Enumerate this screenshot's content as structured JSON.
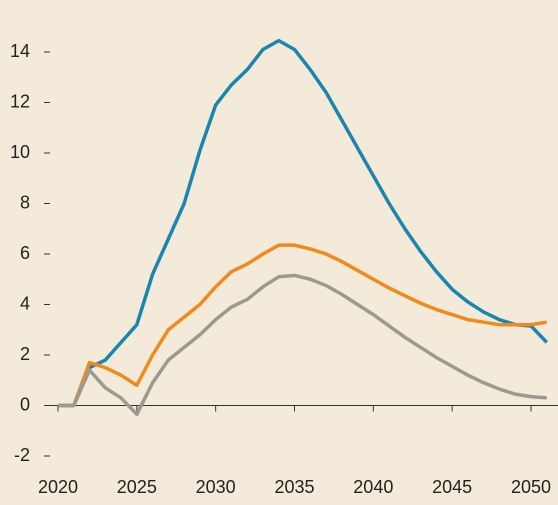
{
  "chart_data": {
    "type": "line",
    "x": [
      2020,
      2021,
      2022,
      2023,
      2024,
      2025,
      2026,
      2027,
      2028,
      2029,
      2030,
      2031,
      2032,
      2033,
      2034,
      2035,
      2036,
      2037,
      2038,
      2039,
      2040,
      2041,
      2042,
      2043,
      2044,
      2045,
      2046,
      2047,
      2048,
      2049,
      2050,
      2051
    ],
    "series": [
      {
        "color": "#1a86b0",
        "values": [
          0,
          0,
          1.5,
          1.8,
          2.5,
          3.2,
          5.2,
          6.6,
          8.0,
          10.1,
          11.9,
          12.7,
          13.3,
          14.1,
          14.45,
          14.1,
          13.3,
          12.4,
          11.3,
          10.2,
          9.1,
          8.0,
          7.0,
          6.1,
          5.3,
          4.6,
          4.1,
          3.7,
          3.4,
          3.2,
          3.15,
          2.5
        ]
      },
      {
        "color": "#f08a1c",
        "values": [
          0,
          0,
          1.7,
          1.5,
          1.2,
          0.8,
          2.0,
          3.0,
          3.5,
          4.0,
          4.7,
          5.3,
          5.6,
          6.0,
          6.35,
          6.35,
          6.2,
          6.0,
          5.7,
          5.35,
          5.0,
          4.65,
          4.35,
          4.05,
          3.8,
          3.6,
          3.4,
          3.3,
          3.2,
          3.2,
          3.2,
          3.3
        ]
      },
      {
        "color": "#9a9a92",
        "values": [
          0,
          0,
          1.4,
          0.7,
          0.3,
          -0.35,
          0.9,
          1.8,
          2.3,
          2.8,
          3.4,
          3.9,
          4.2,
          4.7,
          5.1,
          5.15,
          5.0,
          4.75,
          4.4,
          4.0,
          3.6,
          3.15,
          2.7,
          2.3,
          1.9,
          1.55,
          1.2,
          0.9,
          0.65,
          0.45,
          0.35,
          0.3
        ]
      }
    ],
    "xlim": [
      2020,
      2050
    ],
    "xticks": [
      2020,
      2025,
      2030,
      2035,
      2040,
      2045,
      2050
    ],
    "ylim": [
      -2,
      14
    ],
    "yticks": [
      -2,
      0,
      2,
      4,
      6,
      8,
      10,
      12,
      14
    ]
  }
}
